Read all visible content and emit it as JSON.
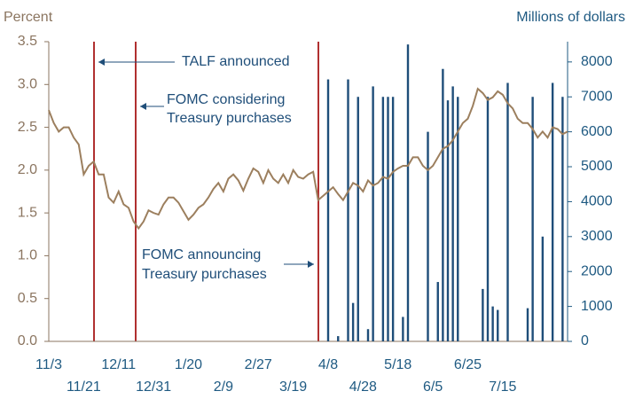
{
  "chart_data": {
    "type": "line_bar",
    "y_label": "Percent",
    "y2_label": "Millions of dollars",
    "annotations": [
      "TALF announced",
      "FOMC considering",
      "Treasury purchases",
      "FOMC announcing",
      "Treasury purchases"
    ],
    "categories": [
      "11/3",
      null,
      null,
      null,
      null,
      null,
      null,
      "11/21",
      null,
      null,
      null,
      null,
      null,
      null,
      "12/11",
      null,
      null,
      null,
      null,
      null,
      null,
      "12/31",
      null,
      null,
      null,
      null,
      null,
      null,
      "1/20",
      null,
      null,
      null,
      null,
      null,
      null,
      "2/9",
      null,
      null,
      null,
      null,
      null,
      null,
      "2/27",
      null,
      null,
      null,
      null,
      null,
      null,
      "3/19",
      null,
      null,
      null,
      null,
      null,
      null,
      "4/8",
      null,
      null,
      null,
      null,
      null,
      null,
      "4/28",
      null,
      null,
      null,
      null,
      null,
      null,
      "5/18",
      null,
      null,
      null,
      null,
      null,
      null,
      "6/5",
      null,
      null,
      null,
      null,
      null,
      null,
      "6/25",
      null,
      null,
      null,
      null,
      null,
      null,
      "7/15",
      null,
      null,
      null,
      null,
      null,
      null,
      null,
      null,
      null,
      null,
      null,
      null,
      null
    ],
    "series": [
      {
        "color": "#9c7f5e",
        "kind": "line",
        "values": [
          2.7,
          2.55,
          2.45,
          2.5,
          2.5,
          2.38,
          2.3,
          1.95,
          2.05,
          2.1,
          1.95,
          1.95,
          1.68,
          1.62,
          1.75,
          1.6,
          1.56,
          1.4,
          1.32,
          1.4,
          1.53,
          1.5,
          1.48,
          1.6,
          1.68,
          1.68,
          1.62,
          1.52,
          1.42,
          1.48,
          1.56,
          1.6,
          1.68,
          1.78,
          1.85,
          1.75,
          1.9,
          1.95,
          1.88,
          1.76,
          1.9,
          2.02,
          1.98,
          1.85,
          2.0,
          1.9,
          1.85,
          1.95,
          1.85,
          2.0,
          1.92,
          1.9,
          1.95,
          1.98,
          1.65,
          1.7,
          1.75,
          1.8,
          1.72,
          1.65,
          1.75,
          1.85,
          1.82,
          1.75,
          1.88,
          1.82,
          1.85,
          1.92,
          1.9,
          1.98,
          2.02,
          2.05,
          2.05,
          2.15,
          2.15,
          2.05,
          2.0,
          2.05,
          2.15,
          2.25,
          2.28,
          2.35,
          2.45,
          2.55,
          2.6,
          2.75,
          2.95,
          2.9,
          2.82,
          2.85,
          2.92,
          2.88,
          2.78,
          2.72,
          2.6,
          2.55,
          2.55,
          2.48,
          2.38,
          2.45,
          2.38,
          2.5,
          2.48,
          2.42,
          2.45
        ]
      },
      {
        "color": "#1f4e79",
        "kind": "bar",
        "axis": "y2",
        "values": [
          null,
          null,
          null,
          null,
          null,
          null,
          null,
          null,
          null,
          null,
          null,
          null,
          null,
          null,
          null,
          null,
          null,
          null,
          null,
          null,
          null,
          null,
          null,
          null,
          null,
          null,
          null,
          null,
          null,
          null,
          null,
          null,
          null,
          null,
          null,
          null,
          null,
          null,
          null,
          null,
          null,
          null,
          null,
          null,
          null,
          null,
          null,
          null,
          null,
          null,
          null,
          null,
          null,
          null,
          null,
          null,
          7500,
          null,
          150,
          null,
          7500,
          1100,
          7000,
          null,
          350,
          7300,
          null,
          7000,
          7000,
          7000,
          null,
          700,
          8500,
          null,
          null,
          null,
          6000,
          null,
          1700,
          7800,
          6900,
          7300,
          7000,
          null,
          null,
          null,
          null,
          1500,
          7000,
          1000,
          900,
          null,
          7400,
          null,
          null,
          null,
          950,
          7000,
          null,
          3000,
          null,
          7400,
          null,
          7000,
          null
        ]
      }
    ],
    "ylim": [
      0,
      3.5
    ],
    "yticks": [
      {
        "value": 0,
        "label": "0.0"
      },
      0.5,
      {
        "value": 1,
        "label": "1.0"
      },
      1.5,
      {
        "value": 2,
        "label": "2.0"
      },
      2.5,
      {
        "value": 3,
        "label": "3.0"
      },
      3.5
    ],
    "y2lim": [
      0,
      8580
    ],
    "y2ticks": [
      0,
      1000,
      2000,
      3000,
      4000,
      5000,
      6000,
      7000,
      8000
    ]
  }
}
